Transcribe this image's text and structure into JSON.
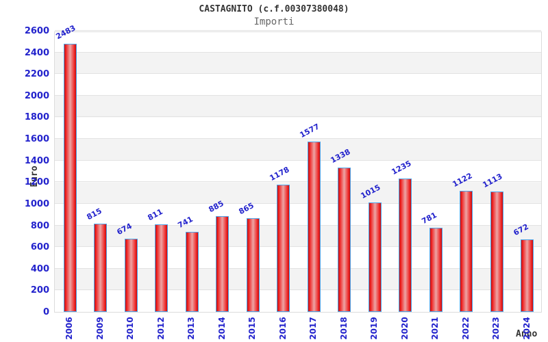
{
  "chart_data": {
    "type": "bar",
    "title": "CASTAGNITO (c.f.00307380048)",
    "subtitle": "Importi",
    "xlabel": "Anno",
    "ylabel": "Euro",
    "categories": [
      "2006",
      "2009",
      "2010",
      "2012",
      "2013",
      "2014",
      "2015",
      "2016",
      "2017",
      "2018",
      "2019",
      "2020",
      "2021",
      "2022",
      "2023",
      "2024"
    ],
    "values": [
      2483,
      815,
      674,
      811,
      741,
      885,
      865,
      1178,
      1577,
      1338,
      1015,
      1235,
      781,
      1122,
      1113,
      672
    ],
    "ylim": [
      0,
      2600
    ],
    "ytick_step": 200,
    "grid": "horizontal-bands",
    "legend": "none",
    "value_labels": "above-bars-rotated",
    "colors": {
      "bar_fill_edge": "#ee2222",
      "bar_fill_center": "#eda5a5",
      "bar_border": "#4da3e8",
      "label_blue": "#2222cc",
      "band_gray": "#f3f3f3",
      "gridline": "#e2e2e2",
      "title_color": "#333333",
      "subtitle_color": "#666666"
    }
  }
}
